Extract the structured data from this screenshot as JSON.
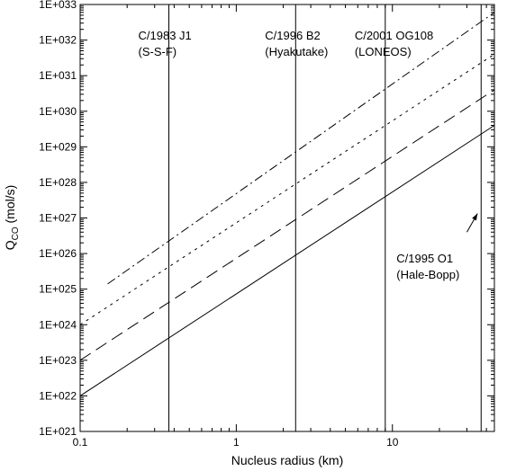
{
  "chart_data": {
    "type": "line",
    "xlabel": "Nucleus radius (km)",
    "ylabel": "Q",
    "ylabel_subscript": "CO",
    "ylabel_unit": " (mol/s)",
    "xscale": "log",
    "yscale": "log",
    "xlim": [
      0.1,
      45
    ],
    "ylim": [
      1e+21,
      1e+33
    ],
    "x_ticks": [
      {
        "value": 0.1,
        "label": "0.1"
      },
      {
        "value": 1,
        "label": "1"
      },
      {
        "value": 10,
        "label": "10"
      }
    ],
    "y_ticks": [
      {
        "value": 1e+21,
        "label": "1E+021"
      },
      {
        "value": 1e+22,
        "label": "1E+022"
      },
      {
        "value": 1e+23,
        "label": "1E+023"
      },
      {
        "value": 1e+24,
        "label": "1E+024"
      },
      {
        "value": 1e+25,
        "label": "1E+025"
      },
      {
        "value": 1e+26,
        "label": "1E+026"
      },
      {
        "value": 1e+27,
        "label": "1E+027"
      },
      {
        "value": 1e+28,
        "label": "1E+028"
      },
      {
        "value": 1e+29,
        "label": "1E+029"
      },
      {
        "value": 1e+30,
        "label": "1E+030"
      },
      {
        "value": 1e+31,
        "label": "1E+031"
      },
      {
        "value": 1e+32,
        "label": "1E+032"
      },
      {
        "value": 1e+33,
        "label": "1E+033"
      }
    ],
    "series": [
      {
        "style": "solid",
        "x": [
          0.1,
          45
        ],
        "y": [
          1e+22,
          4e+29
        ]
      },
      {
        "style": "dashed",
        "x": [
          0.1,
          45
        ],
        "y": [
          1e+23,
          4e+30
        ]
      },
      {
        "style": "dotted",
        "x": [
          0.1,
          45
        ],
        "y": [
          1e+24,
          4e+31
        ]
      },
      {
        "style": "dashdot",
        "x": [
          0.15,
          45
        ],
        "y": [
          1.4e+25,
          6e+32
        ]
      }
    ],
    "vertical_markers": [
      {
        "x": 0.37,
        "label_lines": [
          "C/1983 J1",
          "(S-S-F)"
        ]
      },
      {
        "x": 2.4,
        "label_lines": [
          "C/1996 B2",
          "(Hyakutake)"
        ]
      },
      {
        "x": 9.0,
        "label_lines": [
          "C/2001 OG108",
          "(LONEOS)"
        ]
      },
      {
        "x": 37,
        "label_lines": [
          "C/1995 O1",
          "(Hale-Bopp)"
        ]
      }
    ],
    "annotation_arrow": {
      "from_x": 30,
      "from_y": 4e+26,
      "to_x": 37,
      "to_y": 1.5e+27
    }
  }
}
